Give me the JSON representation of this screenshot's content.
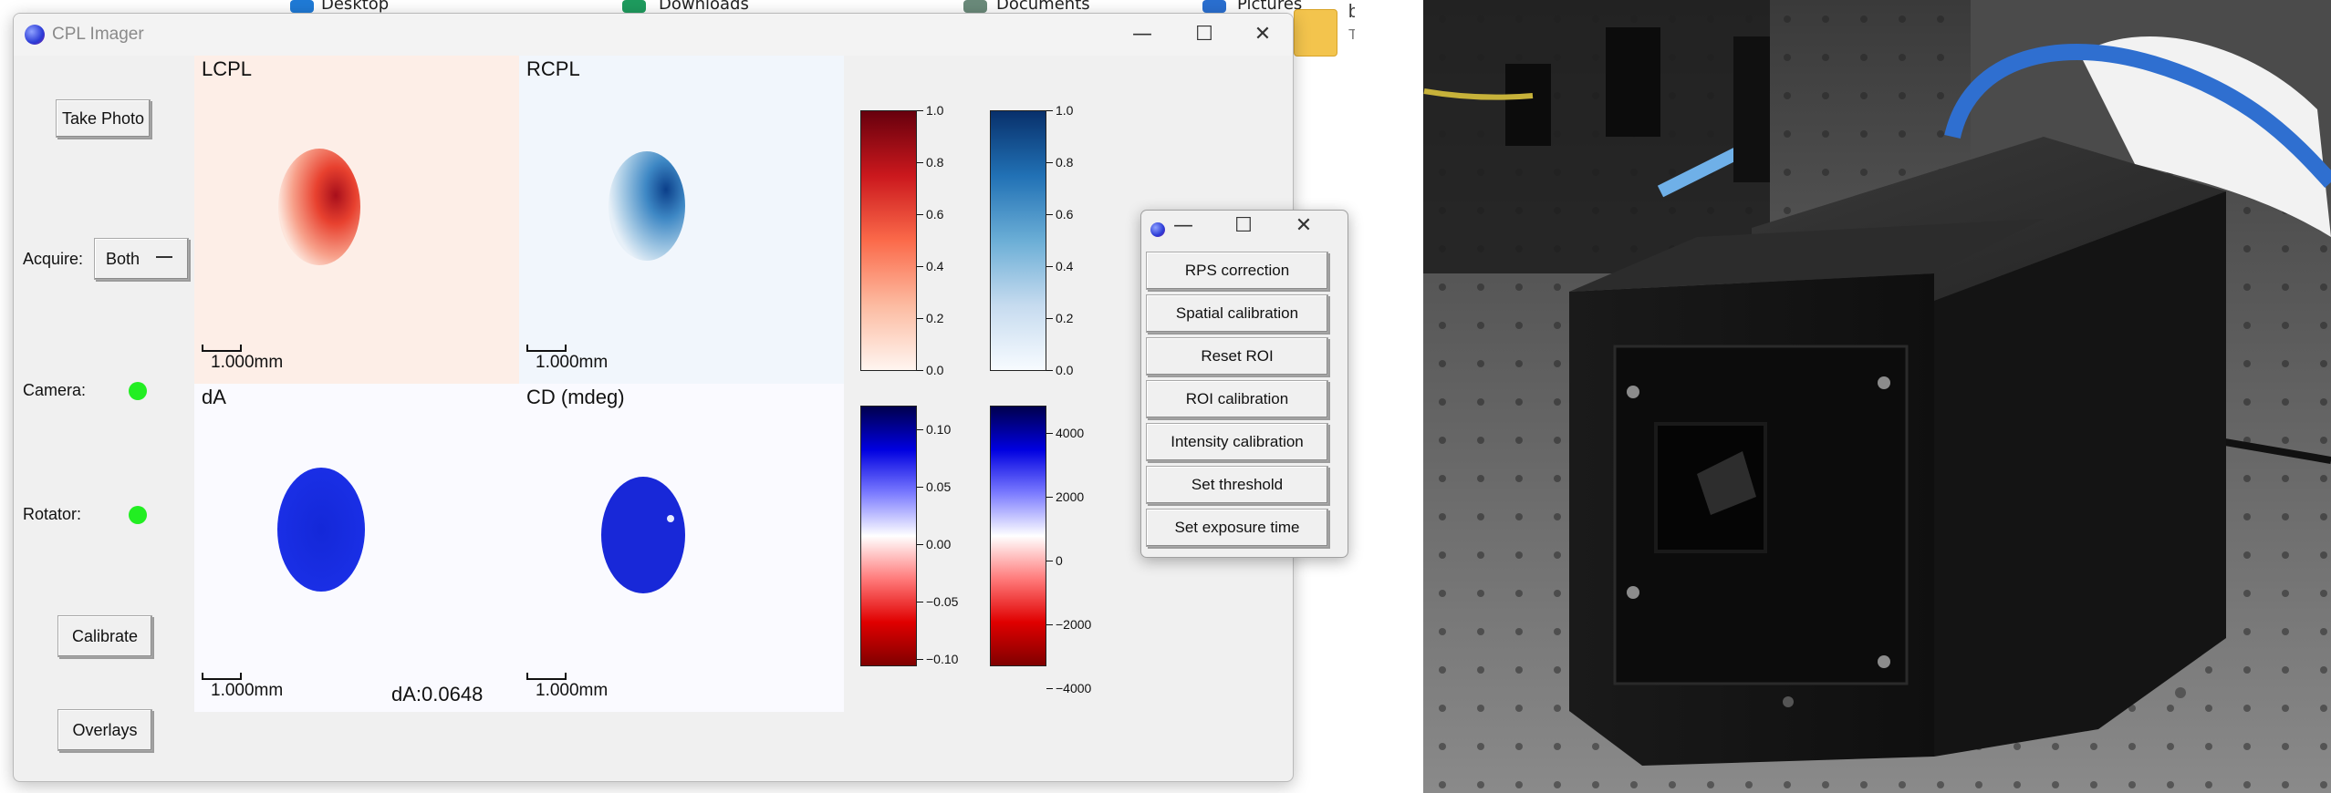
{
  "desktop": {
    "items": [
      "Desktop",
      "Downloads",
      "Documents",
      "Pictures"
    ],
    "corner_chars": [
      "b",
      "T"
    ]
  },
  "window": {
    "title": "CPL Imager",
    "controls": {
      "minimize": "—",
      "maximize": "☐",
      "close": "✕"
    }
  },
  "sidebar": {
    "take_photo": "Take Photo",
    "acquire_label": "Acquire:",
    "acquire_value": "Both",
    "camera_label": "Camera:",
    "rotator_label": "Rotator:",
    "calibrate": "Calibrate",
    "overlays": "Overlays",
    "status_color": "#22ee22"
  },
  "panels": {
    "lcpl": {
      "title": "LCPL",
      "scale": "1.000mm"
    },
    "rcpl": {
      "title": "RCPL",
      "scale": "1.000mm"
    },
    "da": {
      "title": "dA",
      "scale": "1.000mm"
    },
    "cd": {
      "title": "CD (mdeg)",
      "scale": "1.000mm"
    }
  },
  "readout": {
    "da": "dA:0.0648"
  },
  "colorbars": {
    "reds": [
      "1.0",
      "0.8",
      "0.6",
      "0.4",
      "0.2",
      "0.0"
    ],
    "blues": [
      "1.0",
      "0.8",
      "0.6",
      "0.4",
      "0.2",
      "0.0"
    ],
    "da": [
      "0.10",
      "0.05",
      "0.00",
      "−0.05",
      "−0.10"
    ],
    "cd": [
      "4000",
      "2000",
      "0",
      "−2000",
      "−4000"
    ]
  },
  "popup": {
    "controls": {
      "minimize": "—",
      "maximize": "☐",
      "close": "✕"
    },
    "buttons": [
      "RPS correction",
      "Spatial calibration",
      "Reset ROI",
      "ROI calibration",
      "Intensity calibration",
      "Set threshold",
      "Set exposure time"
    ]
  }
}
